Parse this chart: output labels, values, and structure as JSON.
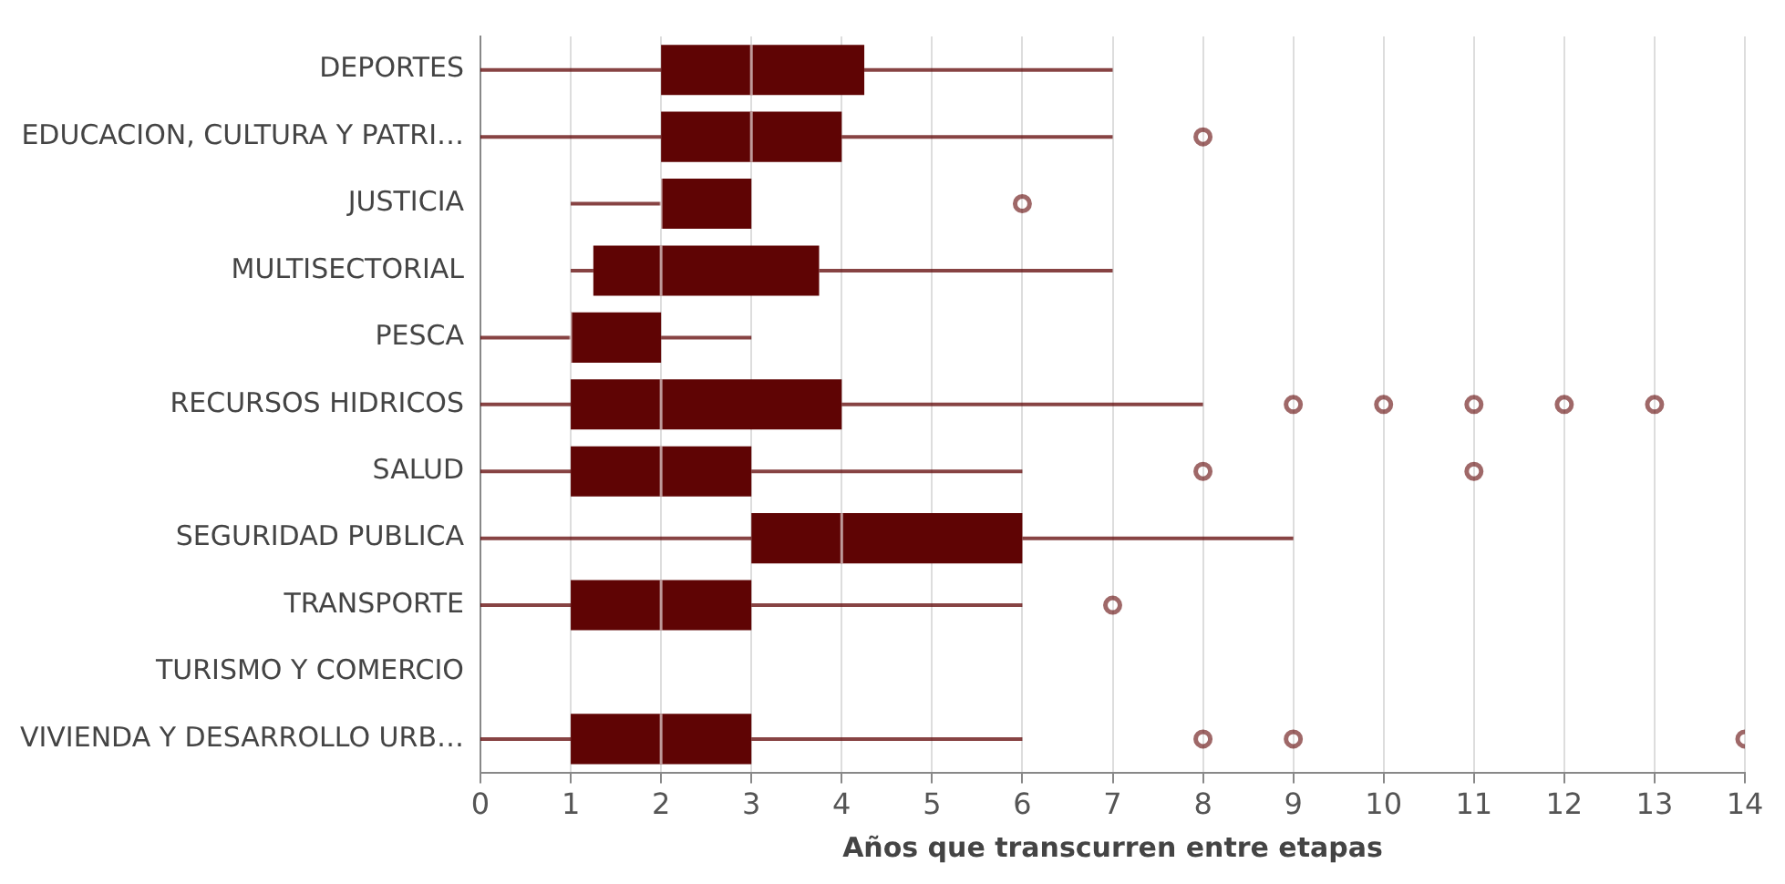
{
  "chart_data": {
    "type": "box",
    "orientation": "horizontal",
    "xlabel": "Años que transcurren entre etapas",
    "categories": [
      "DEPORTES",
      "EDUCACION, CULTURA Y PATRI…",
      "JUSTICIA",
      "MULTISECTORIAL",
      "PESCA",
      "RECURSOS HIDRICOS",
      "SALUD",
      "SEGURIDAD PUBLICA",
      "TRANSPORTE",
      "TURISMO Y COMERCIO",
      "VIVIENDA Y DESARROLLO URB…"
    ],
    "series": [
      {
        "color": "#5f0404",
        "boxes": [
          {
            "low": 0,
            "q1": 2,
            "median": 3,
            "q3": 4.25,
            "high": 7
          },
          {
            "low": 0,
            "q1": 2,
            "median": 3,
            "q3": 4,
            "high": 7,
            "outliers": [
              8
            ]
          },
          {
            "low": 1,
            "q1": 2,
            "median": 2,
            "q3": 3,
            "high": 3,
            "outliers": [
              6
            ]
          },
          {
            "low": 1,
            "q1": 1.25,
            "median": 2,
            "q3": 3.75,
            "high": 7
          },
          {
            "low": 0,
            "q1": 1,
            "median": 1,
            "q3": 2,
            "high": 3
          },
          {
            "low": 0,
            "q1": 1,
            "median": 2,
            "q3": 4,
            "high": 8,
            "outliers": [
              9,
              10,
              11,
              12,
              13
            ]
          },
          {
            "low": 0,
            "q1": 1,
            "median": 2,
            "q3": 3,
            "high": 6,
            "outliers": [
              8,
              11
            ]
          },
          {
            "low": 0,
            "q1": 3,
            "median": 4,
            "q3": 6,
            "high": 9
          },
          {
            "low": 0,
            "q1": 1,
            "median": 2,
            "q3": 3,
            "high": 6,
            "outliers": [
              7
            ]
          },
          null,
          {
            "low": 0,
            "q1": 1,
            "median": 2,
            "q3": 3,
            "high": 6,
            "outliers": [
              8,
              9,
              14
            ]
          }
        ]
      }
    ],
    "xlim": [
      0,
      14
    ],
    "xticks": [
      0,
      1,
      2,
      3,
      4,
      5,
      6,
      7,
      8,
      9,
      10,
      11,
      12,
      13,
      14
    ],
    "grid": "x",
    "legend": false
  }
}
